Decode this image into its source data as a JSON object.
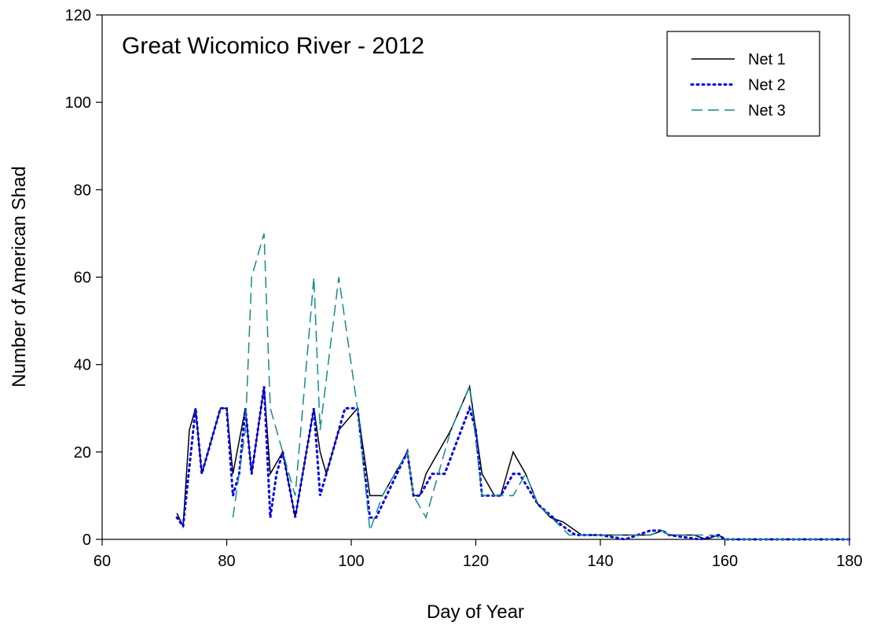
{
  "chart_data": {
    "type": "line",
    "title": "Great Wicomico River - 2012",
    "x_label": "Day of Year",
    "y_label": "Number of American Shad",
    "xlim": [
      60,
      180
    ],
    "xticks": [
      60,
      80,
      100,
      120,
      140,
      160,
      180
    ],
    "ylim": [
      0,
      120
    ],
    "yticks": [
      0,
      20,
      40,
      60,
      80,
      100,
      120
    ],
    "grid": false,
    "legend": "upper right",
    "series": [
      {
        "name": "Net 1",
        "color": "#000000",
        "linestyle": "solid",
        "x": [
          72,
          73,
          74,
          75,
          76,
          79,
          80,
          81,
          83,
          84,
          86,
          87,
          89,
          91,
          94,
          95,
          96,
          98,
          101,
          103,
          105,
          109,
          110,
          111,
          112,
          116,
          119,
          121,
          123,
          124,
          126,
          128,
          130,
          132,
          134,
          136,
          137,
          140,
          144,
          148,
          150,
          151,
          155,
          157,
          159,
          160,
          165,
          170,
          175,
          180
        ],
        "values": [
          6,
          3,
          25,
          30,
          15,
          30,
          30,
          15,
          30,
          15,
          35,
          15,
          20,
          5,
          30,
          20,
          15,
          25,
          30,
          10,
          10,
          20,
          10,
          10,
          15,
          25,
          35,
          15,
          10,
          10,
          20,
          15,
          8,
          5,
          4,
          2,
          1,
          1,
          1,
          1,
          2,
          1,
          1,
          0,
          1,
          0,
          0,
          0,
          0,
          0
        ]
      },
      {
        "name": "Net 2",
        "color": "#0000ee",
        "linestyle": "dotted",
        "x": [
          72,
          73,
          75,
          76,
          79,
          80,
          81,
          82,
          83,
          84,
          86,
          87,
          88,
          89,
          91,
          94,
          95,
          96,
          99,
          101,
          103,
          104,
          109,
          110,
          111,
          113,
          115,
          119,
          120,
          121,
          124,
          126,
          127,
          130,
          134,
          136,
          140,
          144,
          146,
          148,
          150,
          151,
          156,
          159,
          160,
          165,
          170,
          175,
          180
        ],
        "values": [
          5,
          3,
          30,
          15,
          30,
          30,
          10,
          15,
          30,
          15,
          35,
          5,
          15,
          20,
          5,
          30,
          10,
          15,
          30,
          30,
          5,
          5,
          20,
          10,
          10,
          15,
          15,
          30,
          25,
          10,
          10,
          15,
          15,
          8,
          3,
          1,
          1,
          0,
          1,
          2,
          2,
          1,
          0,
          1,
          0,
          0,
          0,
          0,
          0
        ]
      },
      {
        "name": "Net 3",
        "color": "#178a8a",
        "linestyle": "dashed",
        "x": [
          81,
          83,
          84,
          86,
          87,
          89,
          91,
          94,
          95,
          98,
          101,
          103,
          105,
          109,
          110,
          112,
          116,
          119,
          121,
          124,
          126,
          128,
          130,
          135,
          140,
          144,
          148,
          150,
          151,
          155,
          158,
          160,
          165,
          170,
          180
        ],
        "values": [
          5,
          25,
          60,
          70,
          30,
          20,
          10,
          60,
          25,
          60,
          30,
          2,
          10,
          20,
          10,
          5,
          25,
          35,
          10,
          10,
          10,
          15,
          8,
          1,
          1,
          1,
          1,
          2,
          1,
          1,
          1,
          0,
          0,
          0,
          0
        ]
      }
    ]
  }
}
